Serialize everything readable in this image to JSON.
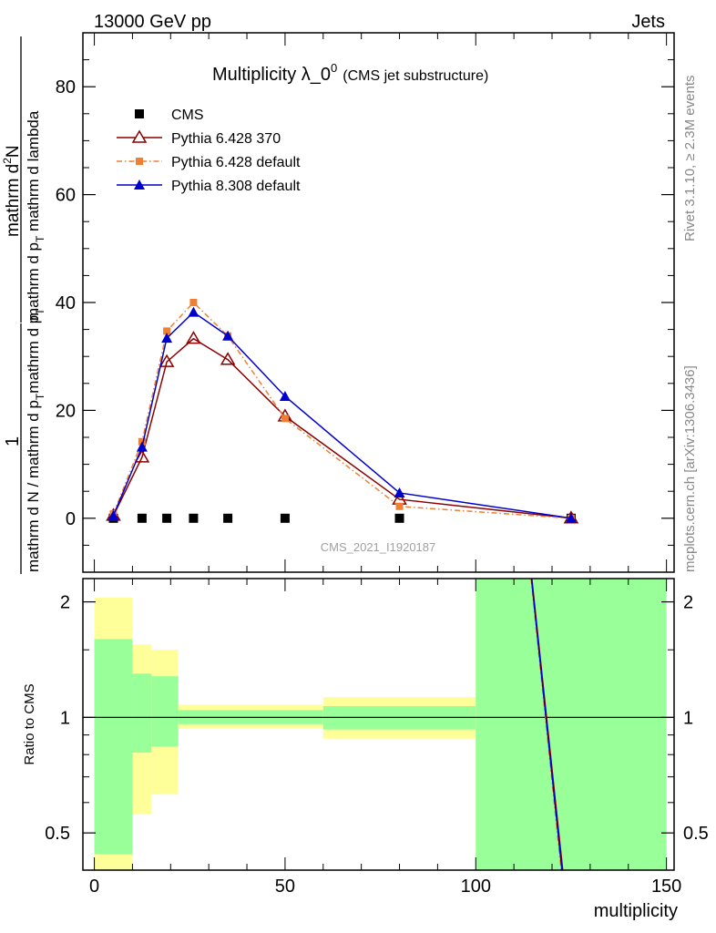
{
  "header": {
    "left": "13000 GeV pp",
    "right": "Jets"
  },
  "side_text": {
    "rivet": "Rivet 3.1.10, ≥ 2.3M events",
    "mcplots": "mcplots.cern.ch [arXiv:1306.3436]"
  },
  "watermark": "CMS_2021_I1920187",
  "chart_data": [
    {
      "type": "line",
      "title": "Multiplicity λ_0",
      "title_superscript": "0",
      "subtitle": "(CMS jet substructure)",
      "ylabel": "1 / mathrm d N / mathrm d p_T mathrm d p_T mathrm d^2N / mathrm d p_T mathrm d lambda",
      "ylabel_parts": {
        "numerator_left": "1",
        "denominator_left": "mathrm d N / mathrm d p",
        "denominator_left_sub": "T",
        "denominator_left_cont": "mathrm d p",
        "denominator_left_sub2": "T",
        "numerator_right": "mathrm d",
        "numerator_right_sup": "2",
        "numerator_right_cont": "N",
        "denominator_right": "mathrm d p",
        "denominator_right_sub": "T",
        "denominator_right_cont": " mathrm d lambda"
      },
      "xlabel": "multiplicity",
      "xlim": [
        -3,
        152
      ],
      "ylim": [
        -10,
        90
      ],
      "yticks": [
        0,
        20,
        40,
        60,
        80
      ],
      "xticks": [
        0,
        50,
        100,
        150
      ],
      "grid": false,
      "legend_position": "top-left",
      "series": [
        {
          "name": "CMS",
          "color": "#000000",
          "marker": "square",
          "x": [
            5,
            12.5,
            19,
            26,
            35,
            50,
            80,
            125
          ],
          "y": [
            0,
            0,
            0,
            0,
            0,
            0,
            0,
            0
          ]
        },
        {
          "name": "Pythia 6.428 370",
          "color": "#8b0000",
          "marker": "open-triangle",
          "line": "solid",
          "x": [
            5,
            12.5,
            19,
            26,
            35,
            50,
            80,
            125
          ],
          "y": [
            0.5,
            11.3,
            29,
            33.3,
            29.4,
            18.9,
            3.5,
            0
          ]
        },
        {
          "name": "Pythia 6.428 default",
          "color": "#f07f32",
          "marker": "small-square",
          "line": "dashdot",
          "x": [
            5,
            12.5,
            19,
            26,
            35,
            50,
            80,
            125
          ],
          "y": [
            0.8,
            14.2,
            34.7,
            40.0,
            33.8,
            18.5,
            2.2,
            0
          ]
        },
        {
          "name": "Pythia 8.308 default",
          "color": "#0000cc",
          "marker": "filled-triangle",
          "line": "solid",
          "x": [
            5,
            12.5,
            19,
            26,
            35,
            50,
            80,
            125
          ],
          "y": [
            0.5,
            13.2,
            33.4,
            38.2,
            33.8,
            22.6,
            4.7,
            0
          ]
        }
      ]
    },
    {
      "type": "line",
      "ylabel": "Ratio to CMS",
      "xlabel": "multiplicity",
      "xlim": [
        -3,
        152
      ],
      "ylim": [
        0.4,
        2.3
      ],
      "yscale": "log",
      "yticks": [
        0.5,
        1,
        2
      ],
      "xticks": [
        0,
        50,
        100,
        150
      ],
      "reference_line": 1,
      "bands": [
        {
          "x0": 0,
          "x1": 10,
          "yellow": [
            0.4,
            2.05
          ],
          "green": [
            0.44,
            1.6
          ]
        },
        {
          "x0": 10,
          "x1": 15,
          "yellow": [
            0.56,
            1.55
          ],
          "green": [
            0.81,
            1.3
          ]
        },
        {
          "x0": 15,
          "x1": 22,
          "yellow": [
            0.63,
            1.5
          ],
          "green": [
            0.84,
            1.28
          ]
        },
        {
          "x0": 22,
          "x1": 60,
          "yellow": [
            0.935,
            1.08
          ],
          "green": [
            0.96,
            1.045
          ]
        },
        {
          "x0": 60,
          "x1": 100,
          "yellow": [
            0.88,
            1.13
          ],
          "green": [
            0.93,
            1.07
          ]
        },
        {
          "x0": 100,
          "x1": 150,
          "yellow": [
            0.4,
            2.3
          ],
          "green": [
            0.4,
            2.3
          ]
        }
      ],
      "band_colors": {
        "yellow": "#ffff99",
        "green": "#99ff99"
      },
      "series": [
        {
          "name": "Pythia 6.428 370",
          "color": "#8b0000",
          "line": "solid",
          "x": [
            114.7,
            122.8
          ],
          "y": [
            2.3,
            0.4
          ]
        },
        {
          "name": "Pythia 6.428 default",
          "color": "#f07f32",
          "line": "dashdot",
          "x": [
            114.5,
            122.4
          ],
          "y": [
            2.3,
            0.4
          ]
        },
        {
          "name": "Pythia 8.308 default",
          "color": "#0000cc",
          "line": "solid",
          "x": [
            114.6,
            122.6
          ],
          "y": [
            2.3,
            0.4
          ]
        }
      ]
    }
  ]
}
